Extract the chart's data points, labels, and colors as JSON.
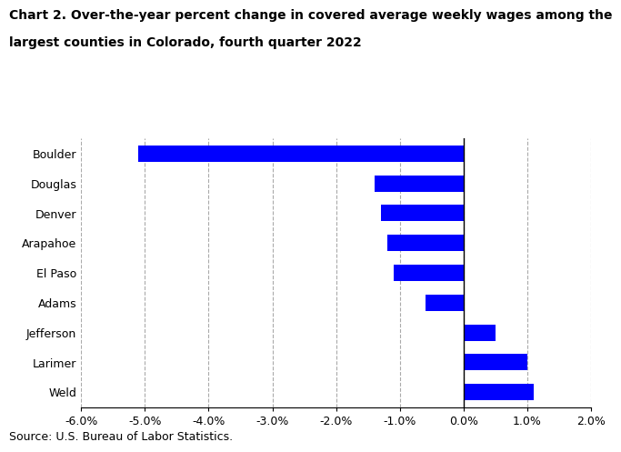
{
  "categories": [
    "Boulder",
    "Douglas",
    "Denver",
    "Arapahoe",
    "El Paso",
    "Adams",
    "Jefferson",
    "Larimer",
    "Weld"
  ],
  "values": [
    -5.1,
    -1.4,
    -1.3,
    -1.2,
    -1.1,
    -0.6,
    0.5,
    1.0,
    1.1
  ],
  "bar_color": "#0000FF",
  "title_line1": "Chart 2. Over-the-year percent change in covered average weekly wages among the",
  "title_line2": "largest counties in Colorado, fourth quarter 2022",
  "source": "Source: U.S. Bureau of Labor Statistics.",
  "xlim": [
    -6.0,
    2.0
  ],
  "xticks": [
    -6.0,
    -5.0,
    -4.0,
    -3.0,
    -2.0,
    -1.0,
    0.0,
    1.0,
    2.0
  ],
  "grid_color": "#aaaaaa",
  "title_fontsize": 10,
  "tick_fontsize": 9,
  "source_fontsize": 9,
  "bar_height": 0.55
}
